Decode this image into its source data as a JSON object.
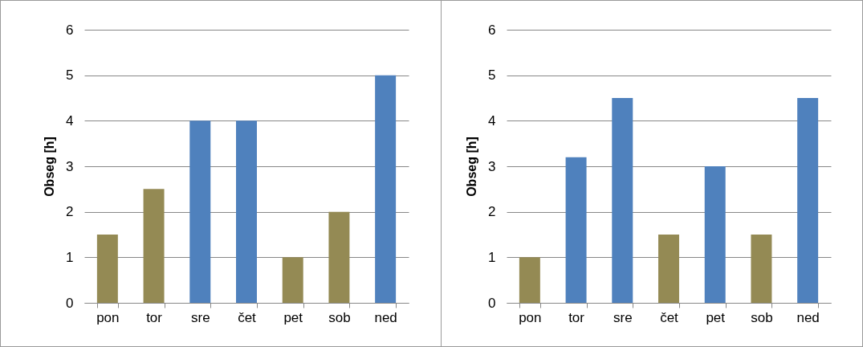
{
  "chart_data": [
    {
      "type": "bar",
      "categories": [
        "pon",
        "tor",
        "sre",
        "čet",
        "pet",
        "sob",
        "ned"
      ],
      "values": [
        1.5,
        2.5,
        4,
        4,
        1,
        2,
        5
      ],
      "colors": [
        "#948a54",
        "#948a54",
        "#4f81bd",
        "#4f81bd",
        "#948a54",
        "#948a54",
        "#4f81bd"
      ],
      "ylabel": "Obseg [h]",
      "ylim": [
        0,
        6
      ],
      "yticks": [
        0,
        1,
        2,
        3,
        4,
        5,
        6
      ],
      "grid": "y"
    },
    {
      "type": "bar",
      "categories": [
        "pon",
        "tor",
        "sre",
        "čet",
        "pet",
        "sob",
        "ned"
      ],
      "values": [
        1,
        3.2,
        4.5,
        1.5,
        3,
        1.5,
        4.5
      ],
      "colors": [
        "#948a54",
        "#4f81bd",
        "#4f81bd",
        "#948a54",
        "#4f81bd",
        "#948a54",
        "#4f81bd"
      ],
      "ylabel": "Obseg [h]",
      "ylim": [
        0,
        6
      ],
      "yticks": [
        0,
        1,
        2,
        3,
        4,
        5,
        6
      ],
      "grid": "y"
    }
  ]
}
